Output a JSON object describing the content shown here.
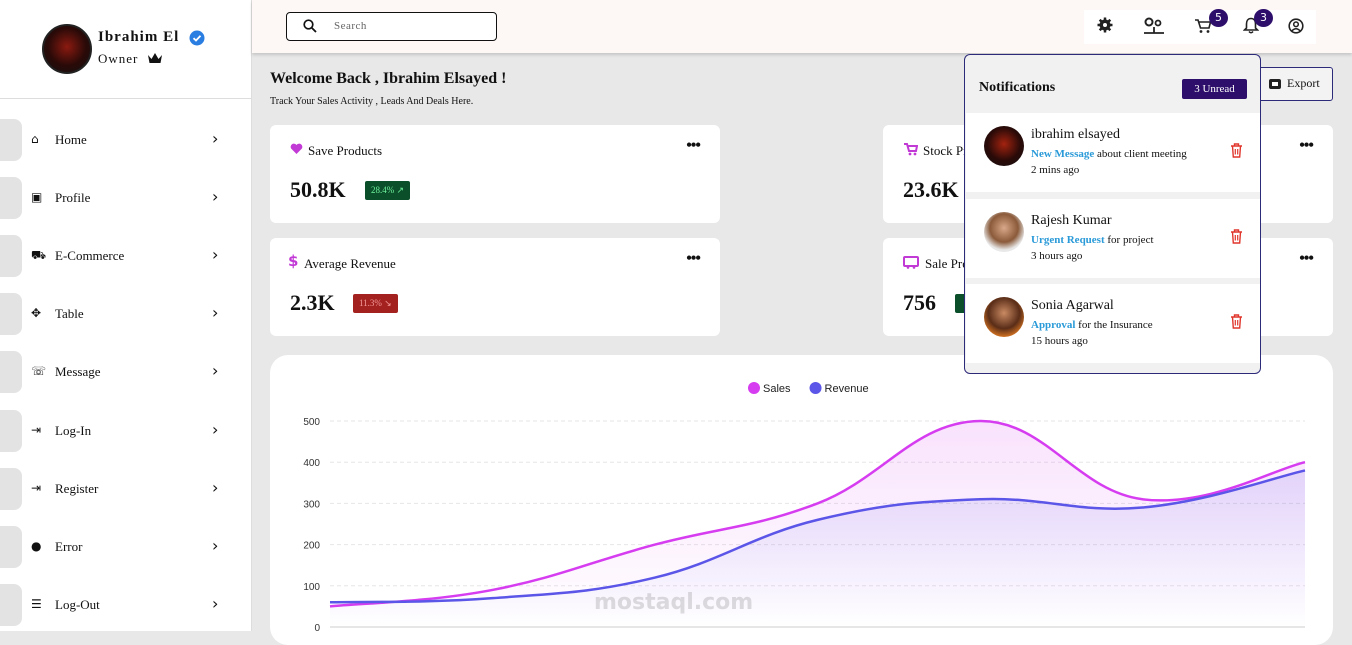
{
  "profile": {
    "name": "Ibrahim El",
    "role": "Owner"
  },
  "menu": [
    "Home",
    "Profile",
    "E-Commerce",
    "Table",
    "Message",
    "Log-In",
    "Register",
    "Error",
    "Log-Out"
  ],
  "search_placeholder": "Search",
  "badges": {
    "cart": 5,
    "notifications": 3
  },
  "welcome": {
    "title": "Welcome Back , Ibrahim Elsayed !",
    "subtitle": "Track Your Sales Activity , Leads And Deals Here."
  },
  "export": "Export",
  "cards": [
    {
      "label": "Save Products",
      "value": "50.8K",
      "change": "28.4%"
    },
    {
      "label": "Stock Pr",
      "value": "23.6K"
    },
    {
      "label": "Average Revenue",
      "value": "2.3K",
      "change": "11.3%"
    },
    {
      "label": "Sale Pro",
      "value": "756"
    }
  ],
  "notifications": {
    "title": "Notifications",
    "unread": "3 Unread",
    "items": [
      {
        "name": "ibrahim elsayed",
        "tag": "New Message",
        "text": "about client meeting",
        "time": "2 mins ago"
      },
      {
        "name": "Rajesh Kumar",
        "tag": "Urgent Request",
        "text": "for project",
        "time": "3 hours ago"
      },
      {
        "name": "Sonia Agarwal",
        "tag": "Approval",
        "text": "for the Insurance",
        "time": "15 hours ago"
      }
    ]
  },
  "chart_data": {
    "type": "line",
    "categories": [
      null,
      null,
      null,
      null,
      null,
      null,
      null
    ],
    "series": [
      {
        "name": "Sales",
        "color": "#d63cf0",
        "values": [
          50,
          90,
          200,
          300,
          500,
          310,
          400
        ]
      },
      {
        "name": "Revenue",
        "color": "#5b55e8",
        "values": [
          60,
          70,
          120,
          260,
          310,
          290,
          380
        ]
      }
    ],
    "ylim": [
      0,
      500
    ],
    "yticks": [
      0,
      100,
      200,
      300,
      400,
      500
    ],
    "grid": true,
    "legend": "top"
  }
}
